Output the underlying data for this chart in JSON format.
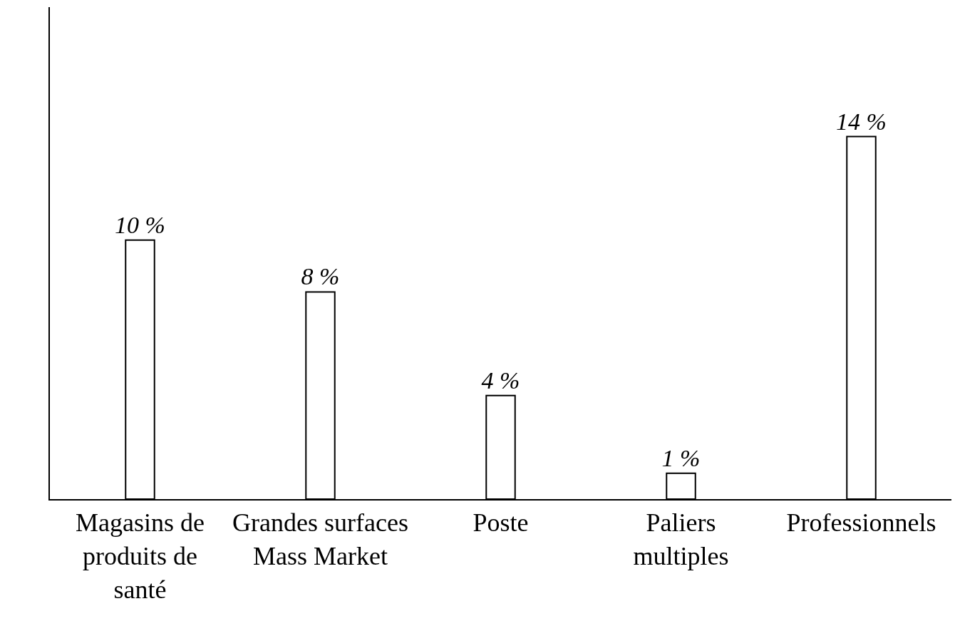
{
  "chart_data": {
    "type": "bar",
    "categories": [
      "Magasins de\nproduits de\nsanté",
      "Grandes surfaces\nMass Market",
      "Poste",
      "Paliers\nmultiples",
      "Professionnels"
    ],
    "values": [
      10,
      8,
      4,
      1,
      14
    ],
    "value_labels": [
      "10 %",
      "8 %",
      "4 %",
      "1 %",
      "14 %"
    ],
    "color": "#ffffff",
    "ylim": [
      0,
      19
    ],
    "tick_labels": "x"
  }
}
